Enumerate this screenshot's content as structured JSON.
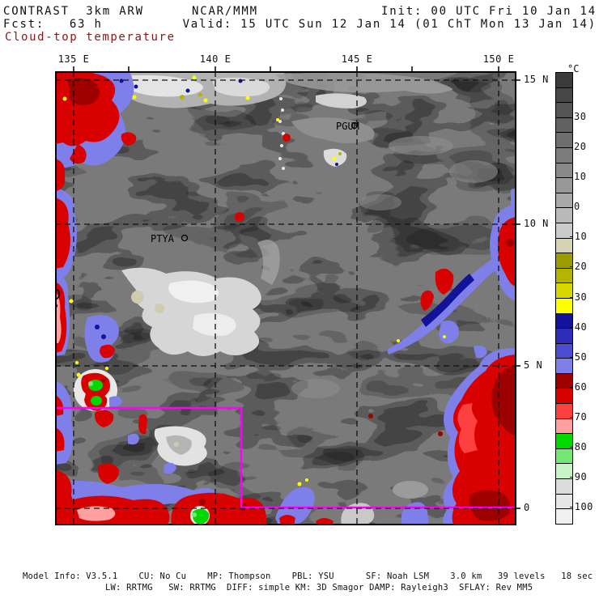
{
  "header": {
    "model": "CONTRAST  3km ARW",
    "center": "NCAR/MMM",
    "init": "Init: 00 UTC Fri 10 Jan 14",
    "fcst": "Fcst:   63 h",
    "valid": "Valid: 15 UTC Sun 12 Jan 14 (01 ChT Mon 13 Jan 14)",
    "product": "Cloud-top temperature",
    "product_color": "#8c1616"
  },
  "map_axes": {
    "lon_ticks": [
      "135 E",
      "140 E",
      "145 E",
      "150 E"
    ],
    "lat_ticks": [
      "15 N",
      "10 N",
      "5 N",
      "0"
    ]
  },
  "stations": [
    {
      "id": "PGUM"
    },
    {
      "id": "PTYA"
    }
  ],
  "overlay": {
    "box_color": "#ff00ff"
  },
  "colorbar": {
    "title": "°C",
    "top_value_c": 45,
    "bottom_value_c": -105,
    "step_c": 5,
    "tick_labels": [
      "30",
      "20",
      "10",
      "0",
      "-10",
      "-20",
      "-30",
      "-40",
      "-50",
      "-60",
      "-70",
      "-80",
      "-90",
      "-100"
    ],
    "cell_colors": [
      "#3b3b3b",
      "#474747",
      "#545454",
      "#616161",
      "#6e6e6e",
      "#7b7b7b",
      "#898989",
      "#989898",
      "#a8a8a8",
      "#b9b9b9",
      "#cbcbcb",
      "#d6d2b6",
      "#9c9c00",
      "#b4b400",
      "#d8d800",
      "#ffff00",
      "#12129b",
      "#2c2cb9",
      "#4d4dd4",
      "#7f7fe9",
      "#9e0000",
      "#d90000",
      "#ff4040",
      "#ffa0a0",
      "#00d900",
      "#74e874",
      "#c6f4c6",
      "#dcdcdc",
      "#e6e6e6",
      "#f0f0f0"
    ]
  },
  "footer": {
    "line1": "Model Info: V3.5.1    CU: No Cu    MP: Thompson    PBL: YSU      SF: Noah LSM    3.0 km   39 levels   18 sec",
    "line2": "LW: RRTMG   SW: RRTMG  DIFF: simple KM: 3D Smagor DAMP: Rayleigh3  SFLAY: Rev MM5"
  },
  "chart_data": {
    "type": "heatmap",
    "title": "Cloud-top temperature",
    "units": "°C",
    "x_axis": {
      "label": "longitude",
      "tick_labels": [
        "135 E",
        "140 E",
        "145 E",
        "150 E"
      ]
    },
    "y_axis": {
      "label": "latitude",
      "tick_labels": [
        "15 N",
        "10 N",
        "5 N",
        "0"
      ]
    },
    "colorbar_levels_c": [
      45,
      40,
      35,
      30,
      25,
      20,
      15,
      10,
      5,
      0,
      -5,
      -10,
      -15,
      -20,
      -25,
      -30,
      -35,
      -40,
      -45,
      -50,
      -55,
      -60,
      -65,
      -70,
      -75,
      -80,
      -85,
      -90,
      -95,
      -100,
      -105
    ],
    "legend_position": "right",
    "grid": "dashed lat/lon every 5 degrees",
    "field_summary": [
      {
        "region": "domain background",
        "value_c": "15 to 25 (mid gray, mostly clear)"
      },
      {
        "region": "left edge 135E full length",
        "value_c": "-55 to -75 (deep convection, red with blue fringes)"
      },
      {
        "region": "top-left corner",
        "value_c": "-55 to -70"
      },
      {
        "region": "NW quadrant cloud streets",
        "value_c": "-5 to 10 (light gray cirrus/anvil debris)"
      },
      {
        "region": "center-left cells ~6N 136E",
        "value_c": "-75 to -90 (red rings, green cores)"
      },
      {
        "region": "SE diagonal band ~6-8N 146-150E",
        "value_c": "-40 to -65 (blue band, red cores)"
      },
      {
        "region": "right edge 3N-0",
        "value_c": "-55 to -70 (large red mass, maroon cores)"
      },
      {
        "region": "southern boundary strip",
        "value_c": "-55 to -85 (red blobs, one green core ~139E)"
      }
    ],
    "annotations": [
      "PGUM station marker near 14.5N 144.8E",
      "PTYA station marker near 9.5N 138.1E",
      "magenta operations box from ~5.4N at west edge stepping down to equator line"
    ]
  }
}
